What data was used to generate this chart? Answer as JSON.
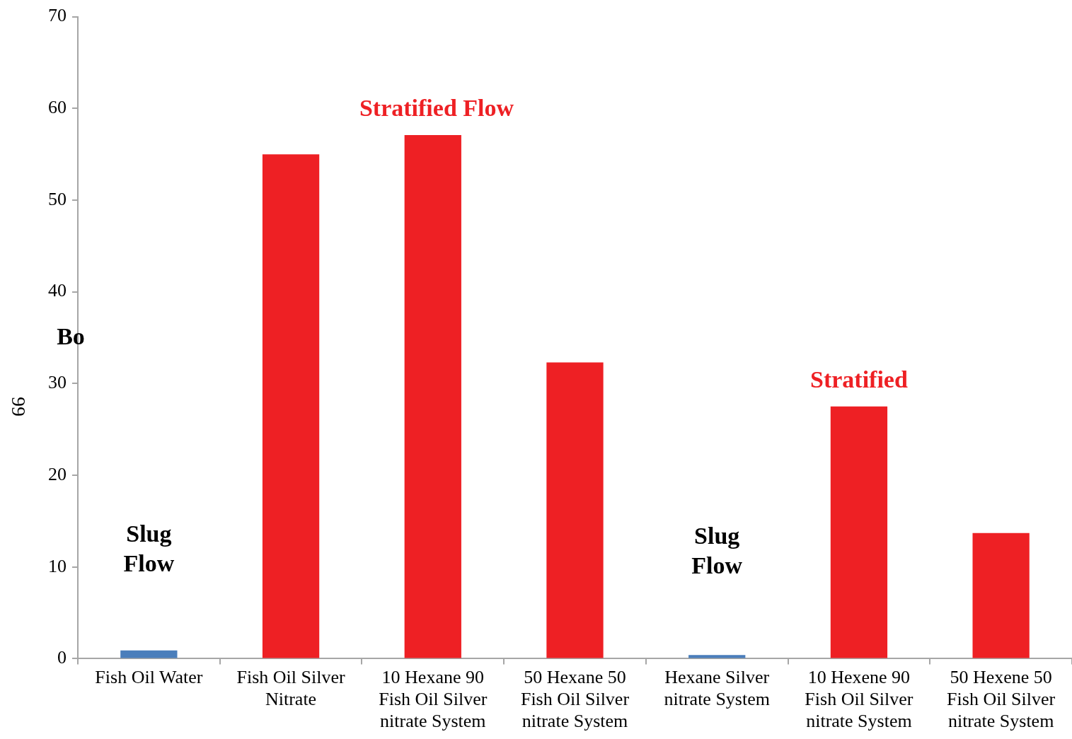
{
  "chart_data": {
    "type": "bar",
    "categories": [
      "Fish Oil Water",
      "Fish Oil Silver Nitrate",
      "10 Hexane 90 Fish Oil Silver nitrate System",
      "50 Hexane 50 Fish Oil Silver nitrate System",
      "Hexane Silver nitrate System",
      "10 Hexene 90 Fish Oil Silver nitrate System",
      "50 Hexene 50 Fish Oil Silver nitrate System"
    ],
    "values": [
      0.9,
      55,
      57.1,
      32.3,
      0.4,
      27.5,
      13.7
    ],
    "colors": [
      "#4a7ebb",
      "#ee2024",
      "#ee2024",
      "#ee2024",
      "#4a7ebb",
      "#ee2024",
      "#ee2024"
    ],
    "ylabel": "Bo",
    "ylim": [
      0,
      70
    ],
    "yticks": [
      0,
      10,
      20,
      30,
      40,
      50,
      60,
      70
    ],
    "grid": false,
    "legend": false,
    "annotations": [
      "Slug Flow",
      "Stratified Flow",
      "Slug Flow",
      "Stratified",
      "99"
    ]
  }
}
